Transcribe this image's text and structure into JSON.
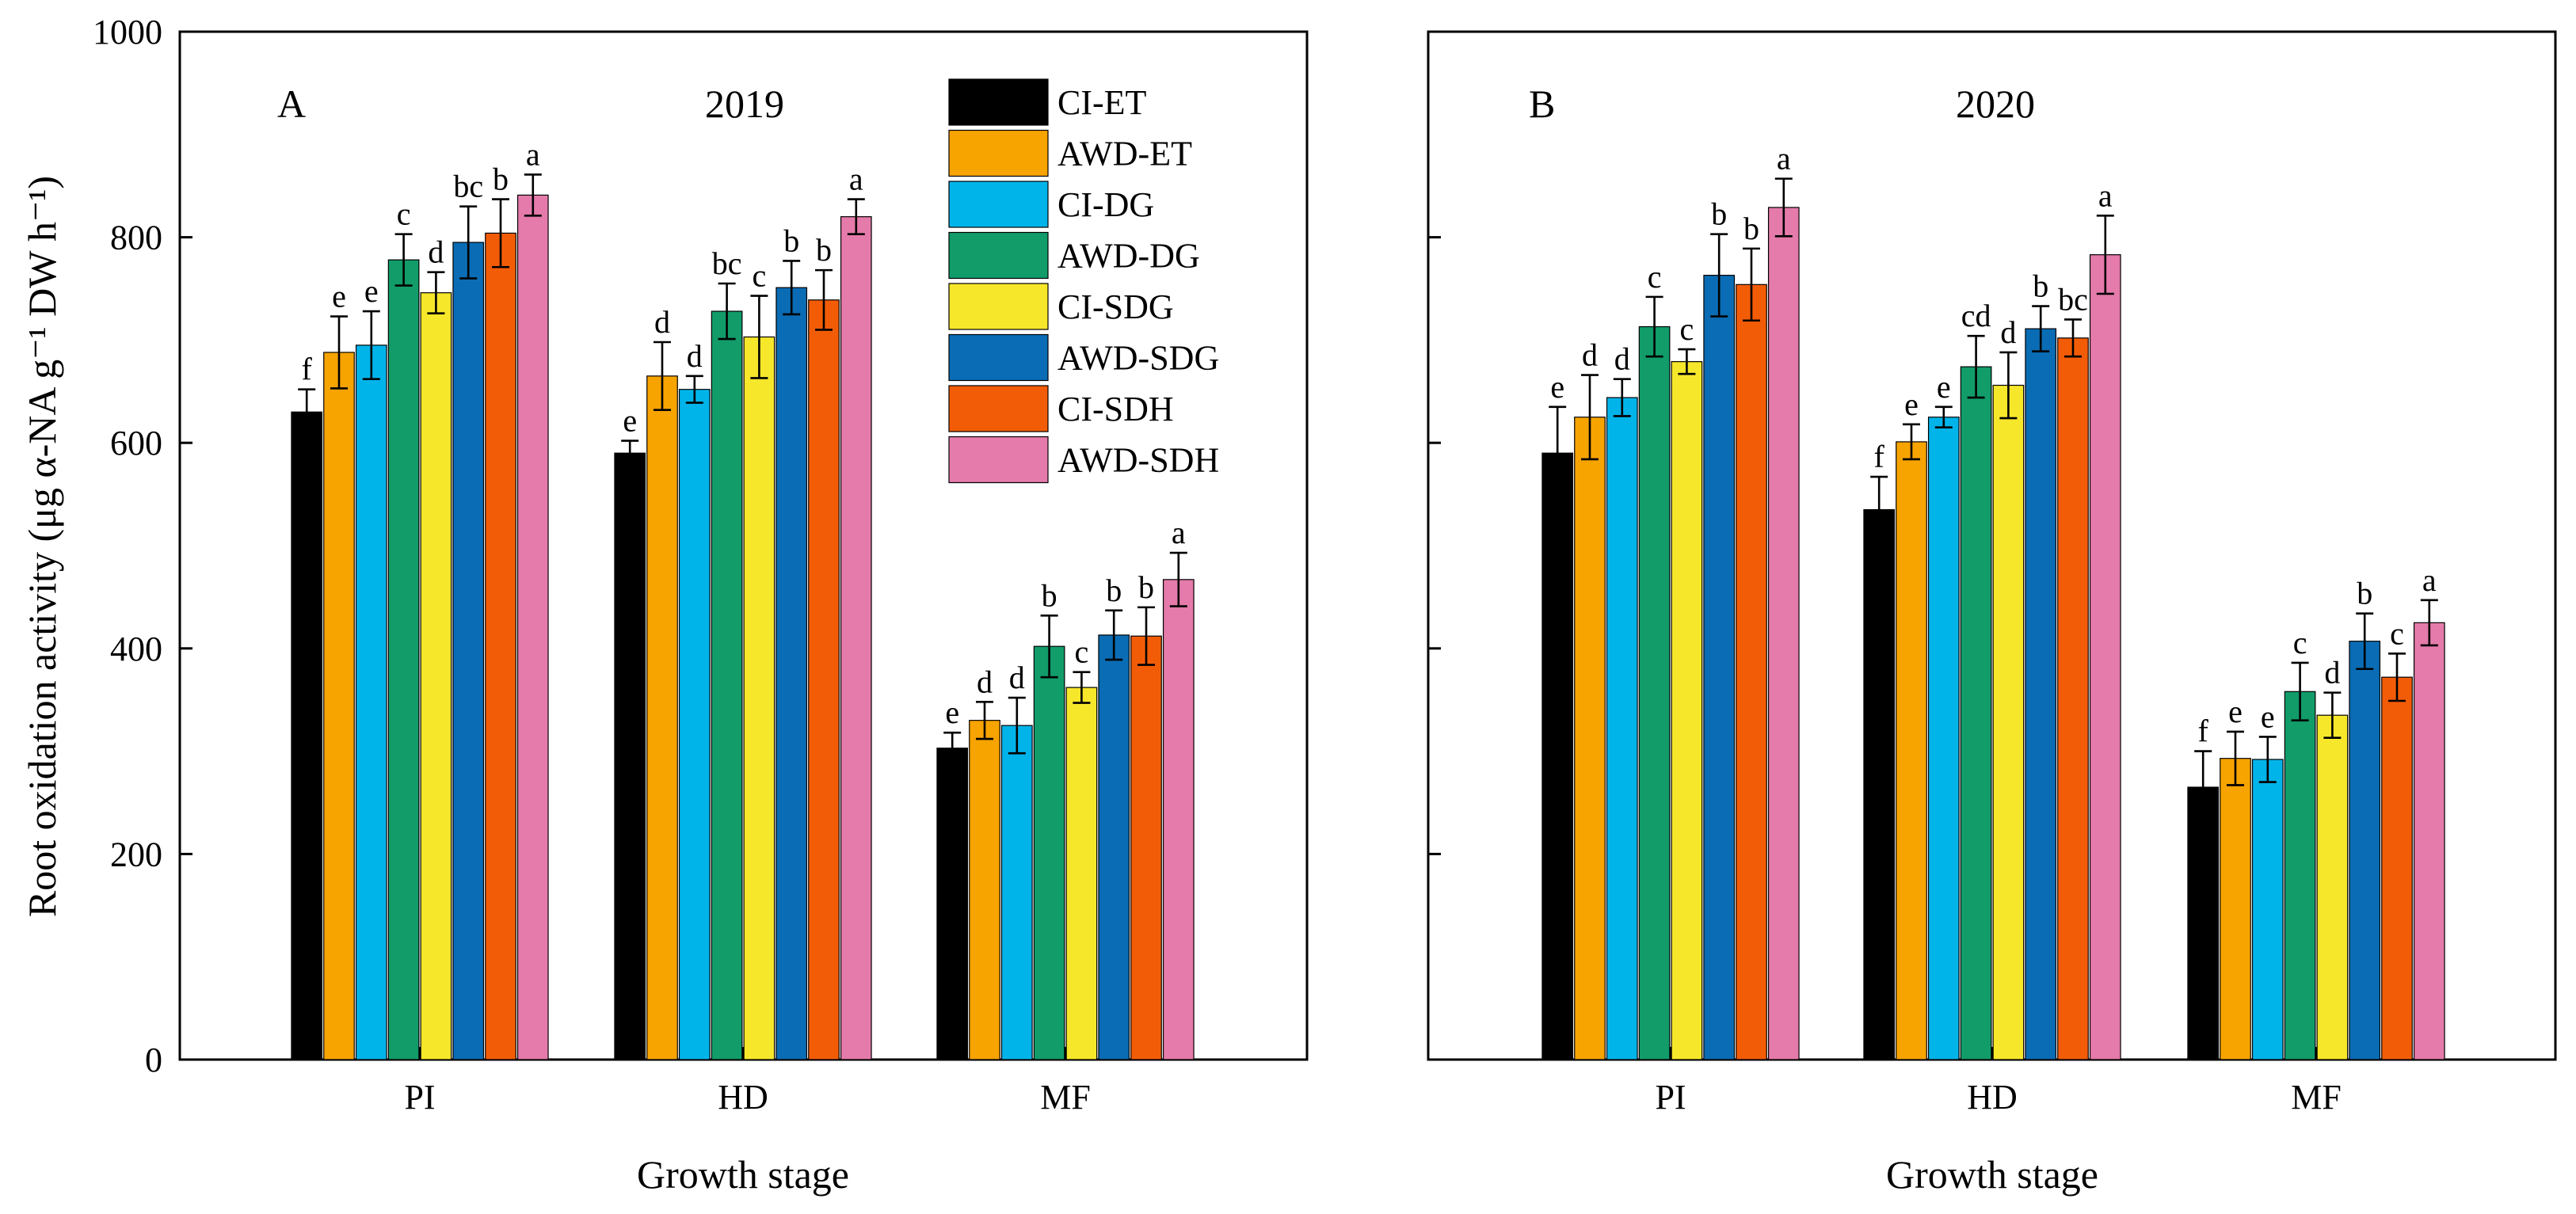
{
  "chart_data": {
    "type": "bar",
    "categories": [
      "PI",
      "HD",
      "MF"
    ],
    "ylabel": "Root oxidation activity (μg α-NA g⁻¹ DW h⁻¹)",
    "ylim": [
      0,
      1000
    ],
    "yticks": [
      0,
      200,
      400,
      600,
      800,
      1000
    ],
    "legend": {
      "position": "top-right of panel A",
      "entries": [
        {
          "name": "CI-ET",
          "color": "#000000"
        },
        {
          "name": "AWD-ET",
          "color": "#F7A300"
        },
        {
          "name": "CI-DG",
          "color": "#00B4EA"
        },
        {
          "name": "AWD-DG",
          "color": "#119C6A"
        },
        {
          "name": "CI-SDG",
          "color": "#F6E72B"
        },
        {
          "name": "AWD-SDG",
          "color": "#0A6CB4"
        },
        {
          "name": "CI-SDH",
          "color": "#F35C06"
        },
        {
          "name": "AWD-SDH",
          "color": "#E47BAA"
        }
      ]
    },
    "panels": [
      {
        "panel_label": "A",
        "year": "2019",
        "xlabel": "Growth stage",
        "series": [
          {
            "name": "CI-ET",
            "values": [
              630,
              590,
              303
            ],
            "errors": [
              22,
              12,
              15
            ],
            "letters": [
              "f",
              "e",
              "e"
            ]
          },
          {
            "name": "AWD-ET",
            "values": [
              688,
              665,
              330
            ],
            "errors": [
              35,
              33,
              18
            ],
            "letters": [
              "e",
              "d",
              "d"
            ]
          },
          {
            "name": "CI-DG",
            "values": [
              695,
              652,
              325
            ],
            "errors": [
              33,
              13,
              27
            ],
            "letters": [
              "e",
              "d",
              "d"
            ]
          },
          {
            "name": "AWD-DG",
            "values": [
              778,
              728,
              402
            ],
            "errors": [
              25,
              27,
              30
            ],
            "letters": [
              "c",
              "bc",
              "b"
            ]
          },
          {
            "name": "CI-SDG",
            "values": [
              746,
              703,
              362
            ],
            "errors": [
              20,
              40,
              15
            ],
            "letters": [
              "d",
              "c",
              "c"
            ]
          },
          {
            "name": "AWD-SDG",
            "values": [
              795,
              751,
              413
            ],
            "errors": [
              35,
              26,
              24
            ],
            "letters": [
              "bc",
              "b",
              "b"
            ]
          },
          {
            "name": "CI-SDH",
            "values": [
              804,
              739,
              412
            ],
            "errors": [
              33,
              29,
              28
            ],
            "letters": [
              "b",
              "b",
              "b"
            ]
          },
          {
            "name": "AWD-SDH",
            "values": [
              841,
              820,
              467
            ],
            "errors": [
              20,
              17,
              26
            ],
            "letters": [
              "a",
              "a",
              "a"
            ]
          }
        ]
      },
      {
        "panel_label": "B",
        "year": "2020",
        "xlabel": "Growth stage",
        "series": [
          {
            "name": "CI-ET",
            "values": [
              590,
              535,
              265
            ],
            "errors": [
              45,
              32,
              35
            ],
            "letters": [
              "e",
              "f",
              "f"
            ]
          },
          {
            "name": "AWD-ET",
            "values": [
              625,
              601,
              293
            ],
            "errors": [
              41,
              17,
              26
            ],
            "letters": [
              "d",
              "e",
              "e"
            ]
          },
          {
            "name": "CI-DG",
            "values": [
              644,
              625,
              292
            ],
            "errors": [
              18,
              10,
              22
            ],
            "letters": [
              "d",
              "e",
              "e"
            ]
          },
          {
            "name": "AWD-DG",
            "values": [
              713,
              674,
              358
            ],
            "errors": [
              29,
              30,
              28
            ],
            "letters": [
              "c",
              "cd",
              "c"
            ]
          },
          {
            "name": "CI-SDG",
            "values": [
              679,
              656,
              335
            ],
            "errors": [
              12,
              32,
              22
            ],
            "letters": [
              "c",
              "d",
              "d"
            ]
          },
          {
            "name": "AWD-SDG",
            "values": [
              763,
              711,
              407
            ],
            "errors": [
              40,
              22,
              27
            ],
            "letters": [
              "b",
              "b",
              "b"
            ]
          },
          {
            "name": "CI-SDH",
            "values": [
              754,
              702,
              372
            ],
            "errors": [
              35,
              18,
              23
            ],
            "letters": [
              "b",
              "bc",
              "c"
            ]
          },
          {
            "name": "AWD-SDH",
            "values": [
              829,
              783,
              425
            ],
            "errors": [
              28,
              38,
              22
            ],
            "letters": [
              "a",
              "a",
              "a"
            ]
          }
        ]
      }
    ]
  }
}
